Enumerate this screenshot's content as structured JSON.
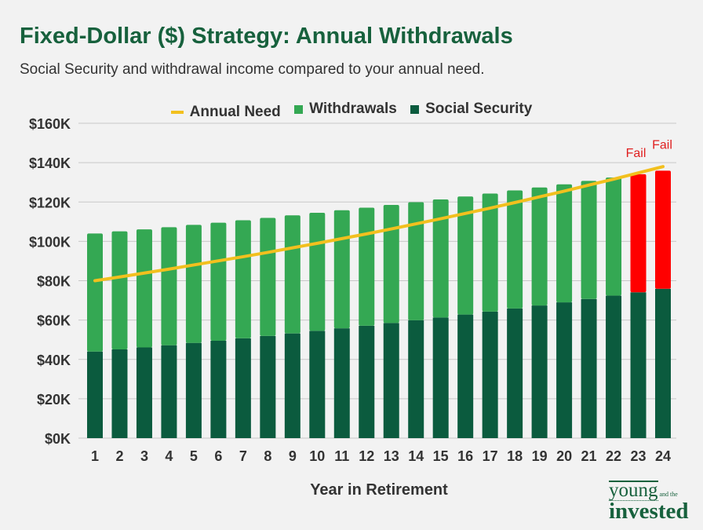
{
  "title": "Fixed-Dollar ($) Strategy: Annual Withdrawals",
  "subtitle": "Social Security and withdrawal income compared to your annual need.",
  "logo": {
    "line1": "young",
    "small": "and the",
    "line2": "invested"
  },
  "colors": {
    "annual_need": "#f2c01e",
    "withdrawals": "#34a853",
    "social_security": "#0b5b3e",
    "fail": "#ff0000",
    "grid": "#c8c8c8"
  },
  "chart_data": {
    "type": "bar",
    "stacked": true,
    "xlabel": "Year in Retirement",
    "ylabel": "",
    "ylim": [
      0,
      160
    ],
    "yticks": [
      0,
      20,
      40,
      60,
      80,
      100,
      120,
      140,
      160
    ],
    "ytick_labels": [
      "$0K",
      "$20K",
      "$40K",
      "$60K",
      "$80K",
      "$100K",
      "$120K",
      "$140K",
      "$160K"
    ],
    "grid": true,
    "legend_position": "top",
    "categories": [
      "1",
      "2",
      "3",
      "4",
      "5",
      "6",
      "7",
      "8",
      "9",
      "10",
      "11",
      "12",
      "13",
      "14",
      "15",
      "16",
      "17",
      "18",
      "19",
      "20",
      "21",
      "22",
      "23",
      "24"
    ],
    "series": [
      {
        "name": "Social Security",
        "type": "bar",
        "values": [
          44.0,
          45.1,
          46.1,
          47.2,
          48.4,
          49.5,
          50.7,
          51.9,
          53.2,
          54.5,
          55.8,
          57.1,
          58.5,
          59.9,
          61.3,
          62.8,
          64.3,
          65.9,
          67.4,
          69.0,
          70.7,
          72.4,
          74.1,
          75.9
        ]
      },
      {
        "name": "Withdrawals",
        "type": "bar",
        "values": [
          60,
          60,
          60,
          60,
          60,
          60,
          60,
          60,
          60,
          60,
          60,
          60,
          60,
          60,
          60,
          60,
          60,
          60,
          60,
          60,
          60,
          60,
          60,
          60
        ]
      },
      {
        "name": "Annual Need",
        "type": "line",
        "values": [
          80.0,
          81.9,
          83.9,
          85.9,
          88.0,
          90.1,
          92.2,
          94.4,
          96.7,
          99.0,
          101.4,
          103.8,
          106.3,
          108.9,
          111.5,
          114.2,
          116.9,
          119.7,
          122.6,
          125.5,
          128.6,
          131.6,
          134.8,
          138.0
        ]
      }
    ],
    "units": "thousands of dollars",
    "annotations": [
      {
        "category": "23",
        "text": "Fail"
      },
      {
        "category": "24",
        "text": "Fail"
      }
    ],
    "failed_years": [
      "23",
      "24"
    ]
  }
}
